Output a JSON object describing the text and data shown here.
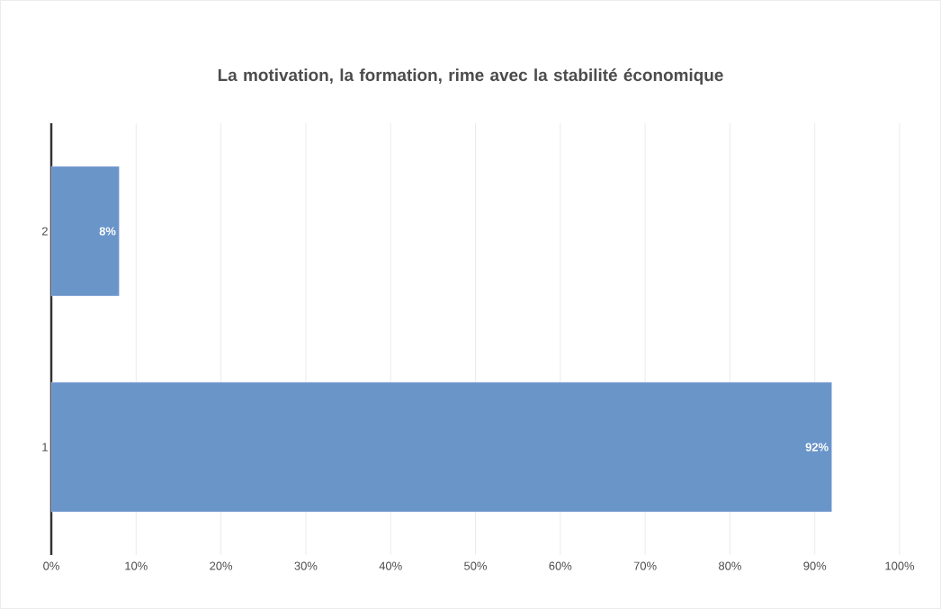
{
  "chart_data": {
    "type": "bar",
    "orientation": "horizontal",
    "title": "La motivation, la formation, rime avec la stabilité économique",
    "categories": [
      "2",
      "1"
    ],
    "values": [
      8,
      92
    ],
    "color": "#6a95c9",
    "value_labels": [
      "8%",
      "92%"
    ],
    "xlim": [
      0,
      100
    ],
    "xticks": [
      {
        "value": 0,
        "label": "0%"
      },
      {
        "value": 10,
        "label": "10%"
      },
      {
        "value": 20,
        "label": "20%"
      },
      {
        "value": 30,
        "label": "30%"
      },
      {
        "value": 40,
        "label": "40%"
      },
      {
        "value": 50,
        "label": "50%"
      },
      {
        "value": 60,
        "label": "60%"
      },
      {
        "value": 70,
        "label": "70%"
      },
      {
        "value": 80,
        "label": "80%"
      },
      {
        "value": 90,
        "label": "90%"
      },
      {
        "value": 100,
        "label": "100%"
      }
    ],
    "grid": "x"
  }
}
